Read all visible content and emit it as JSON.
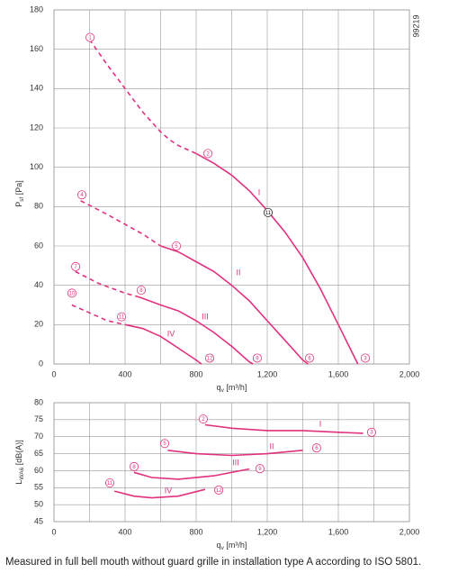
{
  "chart_data": [
    {
      "type": "line",
      "ylabel": {
        "main": "P",
        "sub": "sf",
        "unit": " [Pa]"
      },
      "xlabel": {
        "main": "q",
        "sub": "v",
        "unit": " [m³/h]"
      },
      "figure_number": "99219",
      "xlim": [
        0,
        2000
      ],
      "ylim": [
        0,
        180
      ],
      "xticks": [
        0,
        400,
        800,
        {
          "value": 1200,
          "label": "1,200"
        },
        {
          "value": 1600,
          "label": "1,600"
        },
        {
          "value": 2000,
          "label": "2,000"
        }
      ],
      "x_minor_ticks": [
        200,
        600,
        1000,
        1400,
        1800
      ],
      "yticks": [
        0,
        20,
        40,
        60,
        80,
        100,
        120,
        140,
        160,
        180
      ],
      "grid": true,
      "series": [
        {
          "line_style": "dashed",
          "color": "#e0317e",
          "x": [
            200,
            300,
            400,
            500,
            600,
            650,
            700,
            800
          ],
          "values": [
            165,
            152,
            140,
            128,
            118,
            114,
            111,
            107
          ]
        },
        {
          "name": "I",
          "line_style": "solid",
          "color": "#e0317e",
          "x": [
            800,
            900,
            1000,
            1100,
            1200,
            1300,
            1400,
            1500,
            1600,
            1710
          ],
          "values": [
            107,
            102,
            96,
            88,
            78,
            67,
            54,
            38,
            20,
            0
          ]
        },
        {
          "line_style": "dashed",
          "color": "#e0317e",
          "x": [
            150,
            300,
            400,
            500,
            600
          ],
          "values": [
            83,
            76,
            71,
            66,
            60
          ]
        },
        {
          "name": "II",
          "line_style": "solid",
          "color": "#e0317e",
          "x": [
            600,
            700,
            800,
            900,
            1000,
            1100,
            1200,
            1300,
            1400,
            1430
          ],
          "values": [
            60,
            57,
            52,
            47,
            40,
            32,
            22,
            12,
            2,
            0
          ]
        },
        {
          "line_style": "dashed",
          "color": "#e0317e",
          "x": [
            120,
            250,
            400,
            480
          ],
          "values": [
            47,
            41,
            36,
            34
          ]
        },
        {
          "name": "III",
          "line_style": "solid",
          "color": "#e0317e",
          "x": [
            480,
            600,
            700,
            800,
            900,
            1000,
            1100,
            1120
          ],
          "values": [
            34,
            30,
            27,
            22,
            16,
            9,
            1,
            0
          ]
        },
        {
          "line_style": "dashed",
          "color": "#e0317e",
          "x": [
            100,
            200,
            300,
            400
          ],
          "values": [
            30,
            26,
            22,
            20
          ]
        },
        {
          "name": "IV",
          "line_style": "solid",
          "color": "#e0317e",
          "x": [
            400,
            500,
            600,
            700,
            800,
            830
          ],
          "values": [
            20,
            18,
            14,
            8,
            2,
            0
          ]
        }
      ],
      "markers": [
        {
          "label": "1",
          "x": 203,
          "y": 166,
          "color": "#e0317e"
        },
        {
          "label": "2",
          "x": 866,
          "y": 107,
          "color": "#e0317e"
        },
        {
          "label": "11",
          "x": 1205,
          "y": 77,
          "color": "#222222"
        },
        {
          "label": "3",
          "x": 1752,
          "y": 3,
          "color": "#e0317e"
        },
        {
          "label": "4",
          "x": 157,
          "y": 86,
          "color": "#e0317e"
        },
        {
          "label": "5",
          "x": 689,
          "y": 60,
          "color": "#e0317e"
        },
        {
          "label": "6",
          "x": 1438,
          "y": 3,
          "color": "#e0317e"
        },
        {
          "label": "7",
          "x": 122,
          "y": 49.5,
          "color": "#e0317e"
        },
        {
          "label": "8",
          "x": 491,
          "y": 37.5,
          "color": "#e0317e"
        },
        {
          "label": "9",
          "x": 1144,
          "y": 3,
          "color": "#e0317e"
        },
        {
          "label": "10",
          "x": 101,
          "y": 36,
          "color": "#e0317e"
        },
        {
          "label": "11",
          "x": 380,
          "y": 24,
          "color": "#e0317e"
        },
        {
          "label": "12",
          "x": 876,
          "y": 3,
          "color": "#e0317e"
        }
      ]
    },
    {
      "type": "line",
      "ylabel": {
        "main": "L",
        "sub": "WA6",
        "unit": " [dB(A)]"
      },
      "xlabel": {
        "main": "q",
        "sub": "v",
        "unit": " [m³/h]"
      },
      "xlim": [
        0,
        2000
      ],
      "ylim": [
        45,
        80
      ],
      "xticks": [
        0,
        400,
        800,
        {
          "value": 1200,
          "label": "1,200"
        },
        {
          "value": 1600,
          "label": "1,600"
        },
        {
          "value": 2000,
          "label": "2,000"
        }
      ],
      "x_minor_ticks": [
        200,
        600,
        1000,
        1400,
        1800
      ],
      "yticks": [
        45,
        50,
        55,
        60,
        65,
        70,
        75,
        80
      ],
      "grid": true,
      "series": [
        {
          "name": "I",
          "line_style": "solid",
          "color": "#e0317e",
          "x": [
            850,
            1000,
            1200,
            1400,
            1600,
            1740
          ],
          "values": [
            73.5,
            72.5,
            71.8,
            71.8,
            71.3,
            71
          ]
        },
        {
          "name": "II",
          "line_style": "solid",
          "color": "#e0317e",
          "x": [
            640,
            800,
            1000,
            1200,
            1400
          ],
          "values": [
            66,
            65,
            64.5,
            65,
            66
          ]
        },
        {
          "name": "III",
          "line_style": "solid",
          "color": "#e0317e",
          "x": [
            450,
            550,
            700,
            900,
            1100
          ],
          "values": [
            59.5,
            58,
            57.5,
            58.5,
            60.5
          ]
        },
        {
          "name": "IV",
          "line_style": "solid",
          "color": "#e0317e",
          "x": [
            340,
            450,
            550,
            700,
            850
          ],
          "values": [
            54,
            52.5,
            52,
            52.5,
            54.5
          ]
        }
      ],
      "markers": [
        {
          "label": "2",
          "x": 840,
          "y": 75.2,
          "color": "#e0317e"
        },
        {
          "label": "3",
          "x": 1787,
          "y": 71.3,
          "color": "#e0317e"
        },
        {
          "label": "5",
          "x": 623,
          "y": 68,
          "color": "#e0317e"
        },
        {
          "label": "6",
          "x": 1478,
          "y": 66.7,
          "color": "#e0317e"
        },
        {
          "label": "8",
          "x": 451,
          "y": 61.2,
          "color": "#e0317e"
        },
        {
          "label": "9",
          "x": 1159,
          "y": 60.6,
          "color": "#e0317e"
        },
        {
          "label": "11",
          "x": 314,
          "y": 56.4,
          "color": "#e0317e"
        },
        {
          "label": "12",
          "x": 927,
          "y": 54.3,
          "color": "#e0317e"
        }
      ]
    }
  ],
  "footnote": "Measured in full bell mouth without guard grille in installation type A according to ISO 5801."
}
